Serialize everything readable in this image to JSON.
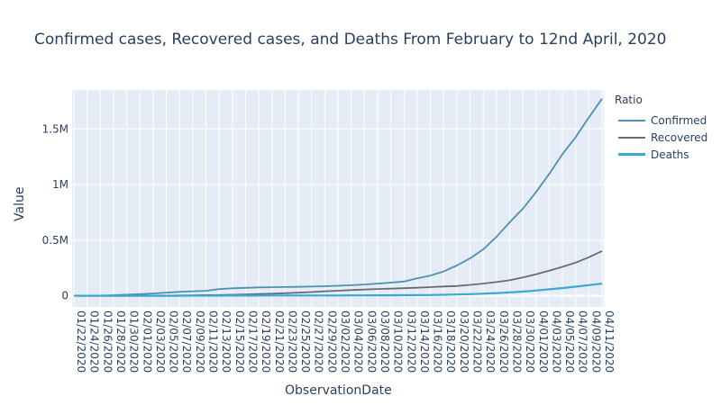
{
  "chart_data": {
    "type": "line",
    "title": "Confirmed cases, Recovered cases, and Deaths From February to 12nd April, 2020",
    "xlabel": "ObservationDate",
    "ylabel": "Value",
    "legend_title": "Ratio",
    "legend_position": "top-right",
    "grid": true,
    "ylim": [
      -100000,
      1850000
    ],
    "y_ticks": [
      0,
      500000,
      1000000,
      1500000
    ],
    "y_tick_labels": [
      "0",
      "0.5M",
      "1M",
      "1.5M"
    ],
    "x_tick_labels": [
      "01/22/2020",
      "01/24/2020",
      "01/26/2020",
      "01/28/2020",
      "01/30/2020",
      "02/01/2020",
      "02/03/2020",
      "02/05/2020",
      "02/07/2020",
      "02/09/2020",
      "02/11/2020",
      "02/13/2020",
      "02/15/2020",
      "02/17/2020",
      "02/19/2020",
      "02/21/2020",
      "02/23/2020",
      "02/25/2020",
      "02/27/2020",
      "02/29/2020",
      "03/02/2020",
      "03/04/2020",
      "03/06/2020",
      "03/08/2020",
      "03/10/2020",
      "03/12/2020",
      "03/14/2020",
      "03/16/2020",
      "03/18/2020",
      "03/20/2020",
      "03/22/2020",
      "03/24/2020",
      "03/26/2020",
      "03/28/2020",
      "03/30/2020",
      "04/01/2020",
      "04/03/2020",
      "04/05/2020",
      "04/07/2020",
      "04/09/2020",
      "04/11/2020"
    ],
    "x": [
      "01/22/2020",
      "01/24/2020",
      "01/26/2020",
      "01/28/2020",
      "01/30/2020",
      "02/01/2020",
      "02/03/2020",
      "02/05/2020",
      "02/07/2020",
      "02/09/2020",
      "02/11/2020",
      "02/13/2020",
      "02/15/2020",
      "02/17/2020",
      "02/19/2020",
      "02/21/2020",
      "02/23/2020",
      "02/25/2020",
      "02/27/2020",
      "02/29/2020",
      "03/02/2020",
      "03/04/2020",
      "03/06/2020",
      "03/08/2020",
      "03/10/2020",
      "03/12/2020",
      "03/14/2020",
      "03/16/2020",
      "03/18/2020",
      "03/20/2020",
      "03/22/2020",
      "03/24/2020",
      "03/26/2020",
      "03/28/2020",
      "03/30/2020",
      "04/01/2020",
      "04/03/2020",
      "04/05/2020",
      "04/07/2020",
      "04/09/2020",
      "04/11/2020"
    ],
    "series": [
      {
        "name": "Confirmed",
        "color": "#4f8fb4",
        "values": [
          555,
          941,
          2118,
          5578,
          9927,
          14557,
          20630,
          28276,
          34886,
          40553,
          45171,
          60364,
          67100,
          71436,
          75198,
          76840,
          78994,
          80415,
          83112,
          86013,
          90309,
          95120,
          101800,
          109821,
          118592,
          128343,
          156101,
          181546,
          218822,
          272167,
          335955,
          416916,
          529591,
          660706,
          782365,
          932605,
          1095917,
          1272115,
          1426096,
          1603082,
          1771514
        ]
      },
      {
        "name": "Recovered",
        "color": "#6b6b78",
        "values": [
          28,
          36,
          52,
          107,
          171,
          284,
          623,
          1153,
          2604,
          3948,
          5671,
          6723,
          9395,
          12583,
          16157,
          18890,
          23384,
          27905,
          33277,
          39782,
          45604,
          51171,
          55865,
          60693,
          64404,
          68324,
          72624,
          78088,
          83312,
          87420,
          97882,
          109191,
          123126,
          139415,
          164566,
          193177,
          225796,
          260012,
          298209,
          346726,
          402110
        ]
      },
      {
        "name": "Deaths",
        "color": "#38a9d3",
        "values": [
          17,
          26,
          56,
          131,
          213,
          362,
          426,
          565,
          724,
          910,
          1113,
          1370,
          1666,
          1871,
          2122,
          2359,
          2469,
          2707,
          2858,
          2996,
          3150,
          3351,
          3558,
          3988,
          4615,
          5404,
          5819,
          7126,
          8968,
          11391,
          14681,
          18903,
          24062,
          30652,
          37583,
          47180,
          58787,
          69374,
          81937,
          95455,
          108503
        ]
      }
    ]
  }
}
